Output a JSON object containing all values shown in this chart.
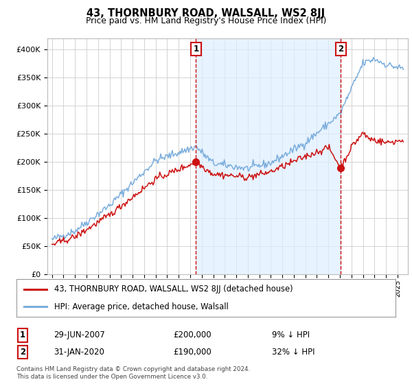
{
  "title": "43, THORNBURY ROAD, WALSALL, WS2 8JJ",
  "subtitle": "Price paid vs. HM Land Registry's House Price Index (HPI)",
  "sale1_date": "29-JUN-2007",
  "sale1_price": 200000,
  "sale1_pct": "9% ↓ HPI",
  "sale2_date": "31-JAN-2020",
  "sale2_price": 190000,
  "sale2_pct": "32% ↓ HPI",
  "legend1": "43, THORNBURY ROAD, WALSALL, WS2 8JJ (detached house)",
  "legend2": "HPI: Average price, detached house, Walsall",
  "footer": "Contains HM Land Registry data © Crown copyright and database right 2024.\nThis data is licensed under the Open Government Licence v3.0.",
  "hpi_color": "#7aaddc",
  "hpi_fill_color": "#ddeeff",
  "sale_color": "#cc1111",
  "marker1_year": 2007.5,
  "marker2_year": 2020.08,
  "sale1_value": 200000,
  "sale2_value": 190000,
  "ylim": [
    0,
    420000
  ],
  "yticks": [
    0,
    50000,
    100000,
    150000,
    200000,
    250000,
    300000,
    350000,
    400000
  ],
  "background_color": "#ffffff",
  "plot_bg_color": "#ffffff",
  "grid_color": "#cccccc"
}
